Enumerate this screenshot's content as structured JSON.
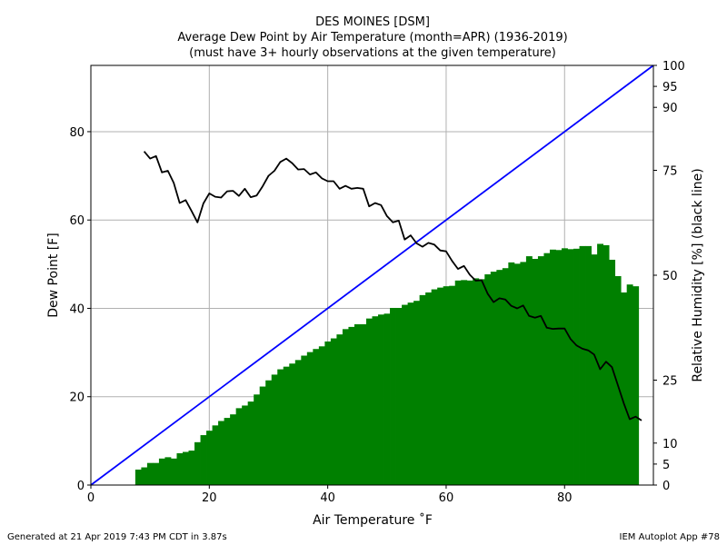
{
  "title": {
    "line1": "DES MOINES [DSM]",
    "line2": "Average Dew Point by Air Temperature (month=APR) (1936-2019)",
    "line3": "(must have 3+ hourly observations at the given temperature)"
  },
  "footer": {
    "left": "Generated at 21 Apr 2019 7:43 PM CDT in 3.87s",
    "right": "IEM Autoplot App #78"
  },
  "chart_data": {
    "type": "bar",
    "xlabel": "Air Temperature ˚F",
    "ylabel": "Dew Point [F]",
    "y2label": "Relative Humidity [%] (black line)",
    "xlim": [
      0,
      95
    ],
    "ylim": [
      0,
      95
    ],
    "xticks": [
      0,
      20,
      40,
      60,
      80
    ],
    "yticks": [
      0,
      20,
      40,
      60,
      80
    ],
    "y2ticks": [
      0,
      5,
      10,
      25,
      50,
      75,
      90,
      95,
      100
    ],
    "grid": true,
    "colors": {
      "bars": "#008000",
      "rh_line": "#000000",
      "one_to_one": "#0000ff"
    },
    "temperature": [
      8,
      9,
      10,
      11,
      12,
      13,
      14,
      15,
      16,
      17,
      18,
      19,
      20,
      21,
      22,
      23,
      24,
      25,
      26,
      27,
      28,
      29,
      30,
      31,
      32,
      33,
      34,
      35,
      36,
      37,
      38,
      39,
      40,
      41,
      42,
      43,
      44,
      45,
      46,
      47,
      48,
      49,
      50,
      51,
      52,
      53,
      54,
      55,
      56,
      57,
      58,
      59,
      60,
      61,
      62,
      63,
      64,
      65,
      66,
      67,
      68,
      69,
      70,
      71,
      72,
      73,
      74,
      75,
      76,
      77,
      78,
      79,
      80,
      81,
      82,
      83,
      84,
      85,
      86,
      87,
      88,
      89,
      90,
      91,
      92,
      93
    ],
    "dew_point": [
      3.5,
      4,
      5,
      5,
      6,
      6.3,
      6,
      7.2,
      7.5,
      7.8,
      9.7,
      11.3,
      12.3,
      13.5,
      14.5,
      15.2,
      16,
      17.4,
      18,
      18.9,
      20.5,
      22.3,
      23.7,
      25,
      26.2,
      26.8,
      27.5,
      28.3,
      29.3,
      30.1,
      30.8,
      31.4,
      32.5,
      33.2,
      34.1,
      35.3,
      35.8,
      36.4,
      36.4,
      37.7,
      38.2,
      38.6,
      38.8,
      40.1,
      40.1,
      40.8,
      41.3,
      41.7,
      43,
      43.6,
      44.3,
      44.7,
      45,
      45.1,
      46.3,
      46.4,
      46.3,
      46.8,
      46.6,
      47.7,
      48.3,
      48.7,
      49.1,
      50.4,
      50.1,
      50.5,
      51.8,
      51.2,
      51.8,
      52.5,
      53.3,
      53.2,
      53.6,
      53.4,
      53.5,
      54.1,
      54.1,
      52.2,
      54.6,
      54.3,
      51,
      47.3,
      43.6,
      45.4,
      45
    ],
    "rh_x": [
      9,
      10,
      11,
      12,
      13,
      14,
      15,
      16,
      17,
      18,
      19,
      20,
      21,
      22,
      23,
      24,
      25,
      26,
      27,
      28,
      29,
      30,
      31,
      32,
      33,
      34,
      35,
      36,
      37,
      38,
      39,
      40,
      41,
      42,
      43,
      44,
      45,
      46,
      47,
      48,
      49,
      50,
      51,
      52,
      53,
      54,
      55,
      56,
      57,
      58,
      59,
      60,
      61,
      62,
      63,
      64,
      65,
      66,
      67,
      68,
      69,
      70,
      71,
      72,
      73,
      74,
      75,
      76,
      77,
      78,
      79,
      80,
      81,
      82,
      83,
      84,
      85,
      86,
      87,
      88,
      89,
      90,
      91,
      92,
      93
    ],
    "rh_values": [
      79.5,
      77.8,
      78.4,
      74.5,
      74.9,
      72,
      67.2,
      67.9,
      65.3,
      62.6,
      67.1,
      69.5,
      68.7,
      68.5,
      70,
      70.1,
      68.9,
      70.6,
      68.6,
      69,
      71.2,
      73.7,
      74.9,
      77,
      77.8,
      76.7,
      75.2,
      75.3,
      74,
      74.5,
      73.1,
      72.4,
      72.4,
      70.6,
      71.3,
      70.6,
      70.8,
      70.6,
      66.4,
      67.2,
      66.7,
      64.1,
      62.6,
      63,
      58.5,
      59.5,
      57.6,
      56.8,
      57.7,
      57.3,
      55.9,
      55.7,
      53.4,
      51.5,
      52.2,
      50.1,
      48.7,
      48.8,
      45.6,
      43.6,
      44.5,
      44.2,
      42.7,
      42.1,
      42.8,
      40.3,
      39.9,
      40.3,
      37.5,
      37.2,
      37.3,
      37.3,
      34.8,
      33.3,
      32.5,
      32.1,
      31.1,
      27.6,
      29.4,
      28.1,
      23.8,
      19.5,
      15.7,
      16.3,
      15.4
    ]
  }
}
